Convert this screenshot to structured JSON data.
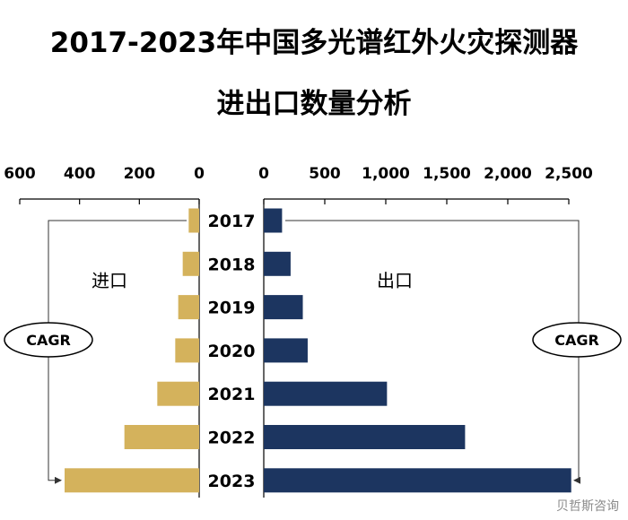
{
  "title_line1": "2017-2023年中国多光谱红外火灾探测器",
  "title_line2": "进出口数量分析",
  "watermark": "贝哲斯咨询",
  "chart_data": {
    "type": "bar",
    "orientation": "horizontal",
    "layout": "back-to-back",
    "categories": [
      "2017",
      "2018",
      "2019",
      "2020",
      "2021",
      "2022",
      "2023"
    ],
    "series": [
      {
        "name": "进口",
        "color": "#D4B25C",
        "values": [
          35,
          55,
          70,
          80,
          140,
          250,
          450
        ]
      },
      {
        "name": "出口",
        "color": "#1C3560",
        "values": [
          150,
          220,
          320,
          360,
          1010,
          1650,
          2520
        ]
      }
    ],
    "import_axis": {
      "range": [
        0,
        600
      ],
      "ticks": [
        "600",
        "400",
        "200",
        "0"
      ],
      "reversed": true
    },
    "export_axis": {
      "range": [
        0,
        2500
      ],
      "ticks": [
        "0",
        "500",
        "1,000",
        "1,500",
        "2,000",
        "2,500"
      ]
    },
    "annotation": "CAGR",
    "grid": false
  }
}
